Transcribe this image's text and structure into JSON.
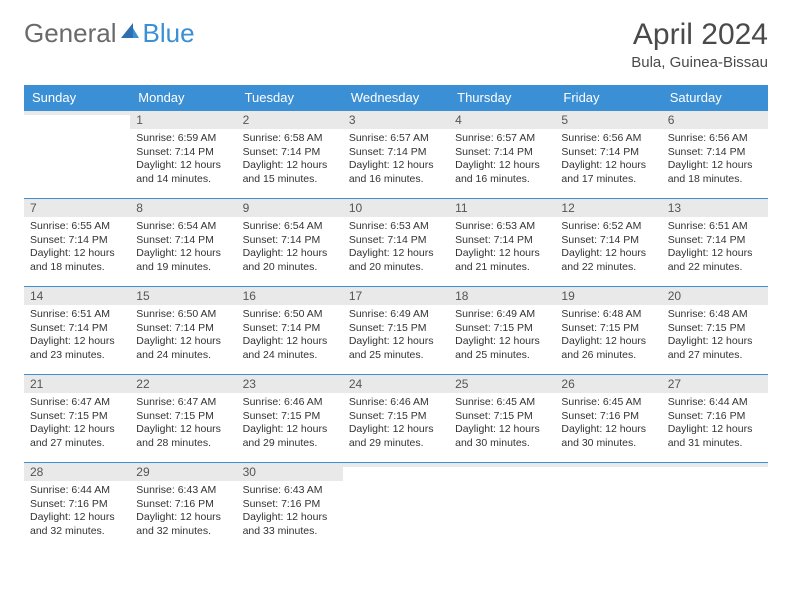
{
  "colors": {
    "header_bg": "#3b8fd4",
    "header_text": "#ffffff",
    "daynum_bg": "#e9e9e9",
    "cell_border": "#3b8fd4",
    "page_bg": "#ffffff",
    "text": "#333333",
    "logo_general": "#6a6a6a",
    "logo_blue": "#3b8fd4",
    "title_color": "#4a4a4a"
  },
  "logo": {
    "general": "General",
    "blue": "Blue"
  },
  "title": "April 2024",
  "location": "Bula, Guinea-Bissau",
  "weekdays": [
    "Sunday",
    "Monday",
    "Tuesday",
    "Wednesday",
    "Thursday",
    "Friday",
    "Saturday"
  ],
  "weeks": [
    [
      {
        "n": "",
        "lines": []
      },
      {
        "n": "1",
        "lines": [
          "Sunrise: 6:59 AM",
          "Sunset: 7:14 PM",
          "Daylight: 12 hours and 14 minutes."
        ]
      },
      {
        "n": "2",
        "lines": [
          "Sunrise: 6:58 AM",
          "Sunset: 7:14 PM",
          "Daylight: 12 hours and 15 minutes."
        ]
      },
      {
        "n": "3",
        "lines": [
          "Sunrise: 6:57 AM",
          "Sunset: 7:14 PM",
          "Daylight: 12 hours and 16 minutes."
        ]
      },
      {
        "n": "4",
        "lines": [
          "Sunrise: 6:57 AM",
          "Sunset: 7:14 PM",
          "Daylight: 12 hours and 16 minutes."
        ]
      },
      {
        "n": "5",
        "lines": [
          "Sunrise: 6:56 AM",
          "Sunset: 7:14 PM",
          "Daylight: 12 hours and 17 minutes."
        ]
      },
      {
        "n": "6",
        "lines": [
          "Sunrise: 6:56 AM",
          "Sunset: 7:14 PM",
          "Daylight: 12 hours and 18 minutes."
        ]
      }
    ],
    [
      {
        "n": "7",
        "lines": [
          "Sunrise: 6:55 AM",
          "Sunset: 7:14 PM",
          "Daylight: 12 hours and 18 minutes."
        ]
      },
      {
        "n": "8",
        "lines": [
          "Sunrise: 6:54 AM",
          "Sunset: 7:14 PM",
          "Daylight: 12 hours and 19 minutes."
        ]
      },
      {
        "n": "9",
        "lines": [
          "Sunrise: 6:54 AM",
          "Sunset: 7:14 PM",
          "Daylight: 12 hours and 20 minutes."
        ]
      },
      {
        "n": "10",
        "lines": [
          "Sunrise: 6:53 AM",
          "Sunset: 7:14 PM",
          "Daylight: 12 hours and 20 minutes."
        ]
      },
      {
        "n": "11",
        "lines": [
          "Sunrise: 6:53 AM",
          "Sunset: 7:14 PM",
          "Daylight: 12 hours and 21 minutes."
        ]
      },
      {
        "n": "12",
        "lines": [
          "Sunrise: 6:52 AM",
          "Sunset: 7:14 PM",
          "Daylight: 12 hours and 22 minutes."
        ]
      },
      {
        "n": "13",
        "lines": [
          "Sunrise: 6:51 AM",
          "Sunset: 7:14 PM",
          "Daylight: 12 hours and 22 minutes."
        ]
      }
    ],
    [
      {
        "n": "14",
        "lines": [
          "Sunrise: 6:51 AM",
          "Sunset: 7:14 PM",
          "Daylight: 12 hours and 23 minutes."
        ]
      },
      {
        "n": "15",
        "lines": [
          "Sunrise: 6:50 AM",
          "Sunset: 7:14 PM",
          "Daylight: 12 hours and 24 minutes."
        ]
      },
      {
        "n": "16",
        "lines": [
          "Sunrise: 6:50 AM",
          "Sunset: 7:14 PM",
          "Daylight: 12 hours and 24 minutes."
        ]
      },
      {
        "n": "17",
        "lines": [
          "Sunrise: 6:49 AM",
          "Sunset: 7:15 PM",
          "Daylight: 12 hours and 25 minutes."
        ]
      },
      {
        "n": "18",
        "lines": [
          "Sunrise: 6:49 AM",
          "Sunset: 7:15 PM",
          "Daylight: 12 hours and 25 minutes."
        ]
      },
      {
        "n": "19",
        "lines": [
          "Sunrise: 6:48 AM",
          "Sunset: 7:15 PM",
          "Daylight: 12 hours and 26 minutes."
        ]
      },
      {
        "n": "20",
        "lines": [
          "Sunrise: 6:48 AM",
          "Sunset: 7:15 PM",
          "Daylight: 12 hours and 27 minutes."
        ]
      }
    ],
    [
      {
        "n": "21",
        "lines": [
          "Sunrise: 6:47 AM",
          "Sunset: 7:15 PM",
          "Daylight: 12 hours and 27 minutes."
        ]
      },
      {
        "n": "22",
        "lines": [
          "Sunrise: 6:47 AM",
          "Sunset: 7:15 PM",
          "Daylight: 12 hours and 28 minutes."
        ]
      },
      {
        "n": "23",
        "lines": [
          "Sunrise: 6:46 AM",
          "Sunset: 7:15 PM",
          "Daylight: 12 hours and 29 minutes."
        ]
      },
      {
        "n": "24",
        "lines": [
          "Sunrise: 6:46 AM",
          "Sunset: 7:15 PM",
          "Daylight: 12 hours and 29 minutes."
        ]
      },
      {
        "n": "25",
        "lines": [
          "Sunrise: 6:45 AM",
          "Sunset: 7:15 PM",
          "Daylight: 12 hours and 30 minutes."
        ]
      },
      {
        "n": "26",
        "lines": [
          "Sunrise: 6:45 AM",
          "Sunset: 7:16 PM",
          "Daylight: 12 hours and 30 minutes."
        ]
      },
      {
        "n": "27",
        "lines": [
          "Sunrise: 6:44 AM",
          "Sunset: 7:16 PM",
          "Daylight: 12 hours and 31 minutes."
        ]
      }
    ],
    [
      {
        "n": "28",
        "lines": [
          "Sunrise: 6:44 AM",
          "Sunset: 7:16 PM",
          "Daylight: 12 hours and 32 minutes."
        ]
      },
      {
        "n": "29",
        "lines": [
          "Sunrise: 6:43 AM",
          "Sunset: 7:16 PM",
          "Daylight: 12 hours and 32 minutes."
        ]
      },
      {
        "n": "30",
        "lines": [
          "Sunrise: 6:43 AM",
          "Sunset: 7:16 PM",
          "Daylight: 12 hours and 33 minutes."
        ]
      },
      {
        "n": "",
        "lines": []
      },
      {
        "n": "",
        "lines": []
      },
      {
        "n": "",
        "lines": []
      },
      {
        "n": "",
        "lines": []
      }
    ]
  ]
}
